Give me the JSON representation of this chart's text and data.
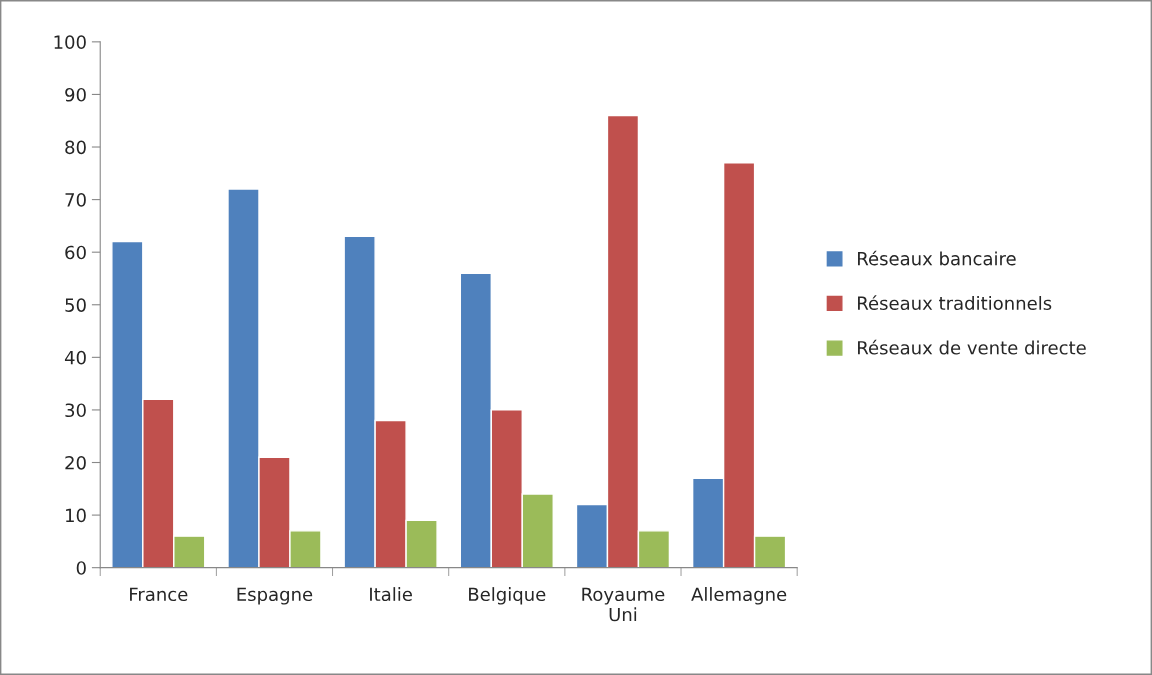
{
  "chart_data": {
    "type": "bar",
    "categories": [
      "France",
      "Espagne",
      "Italie",
      "Belgique",
      "Royaume Uni",
      "Allemagne"
    ],
    "series": [
      {
        "name": "Réseaux bancaire",
        "color": "#4f81bd",
        "values": [
          62,
          72,
          63,
          56,
          12,
          17
        ]
      },
      {
        "name": "Réseaux traditionnels",
        "color": "#c0504d",
        "values": [
          32,
          21,
          28,
          30,
          86,
          77
        ]
      },
      {
        "name": "Réseaux de vente directe",
        "color": "#9bbb59",
        "values": [
          6,
          7,
          9,
          14,
          7,
          6
        ]
      }
    ],
    "ylim": [
      0,
      100
    ],
    "yticks": [
      0,
      10,
      20,
      30,
      40,
      50,
      60,
      70,
      80,
      90,
      100
    ],
    "grid": false,
    "legend": "right"
  }
}
